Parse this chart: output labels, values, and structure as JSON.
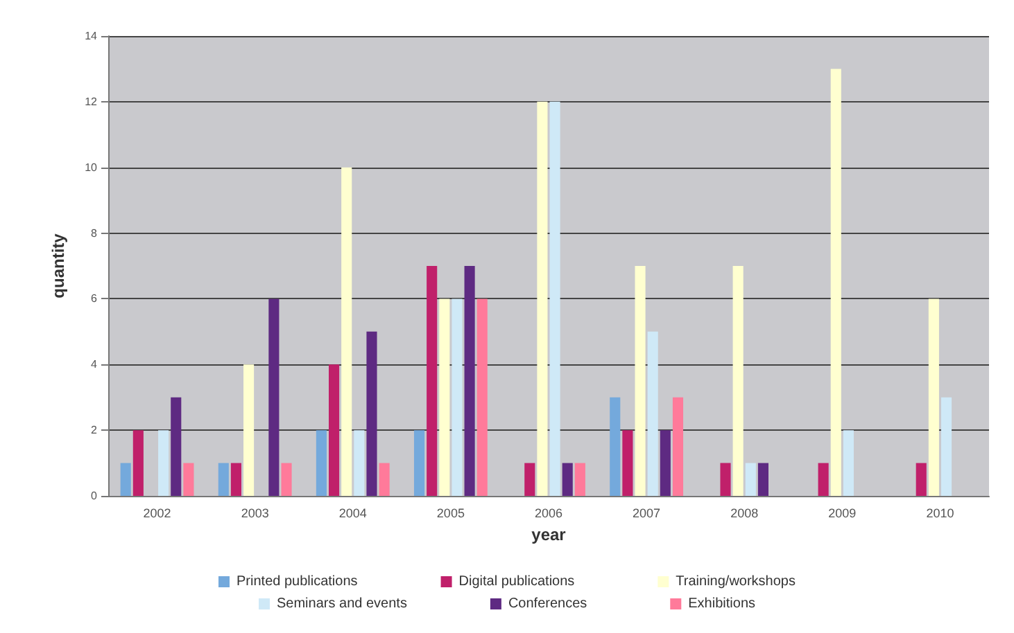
{
  "chart_data": {
    "type": "bar",
    "xlabel": "year",
    "ylabel": "quantity",
    "categories": [
      "2002",
      "2003",
      "2004",
      "2005",
      "2006",
      "2007",
      "2008",
      "2009",
      "2010"
    ],
    "series": [
      {
        "name": "Printed publications",
        "color": "#74a9dc",
        "values": [
          1,
          1,
          2,
          2,
          0,
          3,
          0,
          0,
          0
        ]
      },
      {
        "name": "Digital publications",
        "color": "#c0206a",
        "values": [
          2,
          1,
          4,
          7,
          1,
          2,
          1,
          1,
          1
        ]
      },
      {
        "name": "Training/workshops",
        "color": "#ffffd0",
        "values": [
          0,
          4,
          10,
          6,
          12,
          7,
          7,
          13,
          6
        ]
      },
      {
        "name": "Seminars and events",
        "color": "#cfe9f7",
        "values": [
          2,
          0,
          2,
          6,
          12,
          5,
          1,
          2,
          3
        ]
      },
      {
        "name": "Conferences",
        "color": "#5e2a82",
        "values": [
          3,
          6,
          5,
          7,
          1,
          2,
          1,
          0,
          0
        ]
      },
      {
        "name": "Exhibitions",
        "color": "#ff7a9a",
        "values": [
          1,
          1,
          1,
          6,
          1,
          3,
          0,
          0,
          0
        ]
      }
    ],
    "ylim": [
      0,
      14
    ],
    "yticks": [
      0,
      2,
      4,
      6,
      8,
      10,
      12,
      14
    ],
    "grid": true,
    "legend": "bottom"
  }
}
